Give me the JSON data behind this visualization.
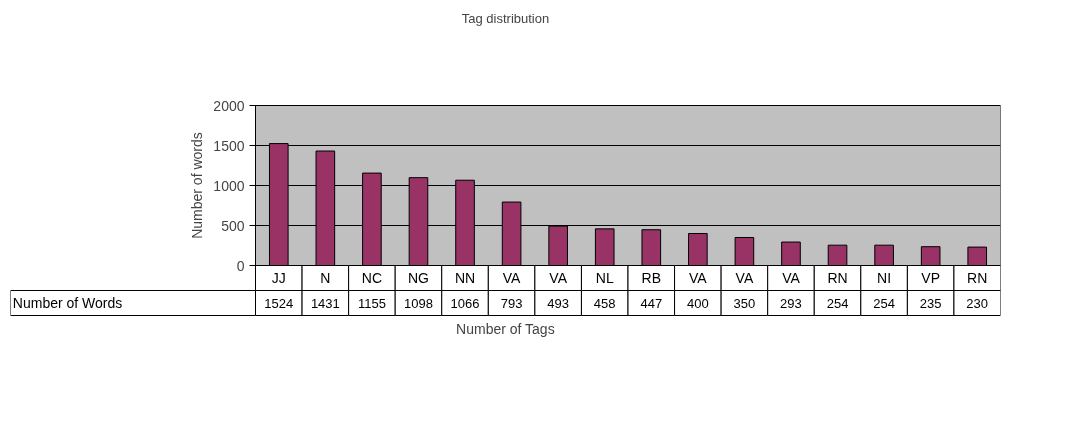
{
  "chart_data": {
    "type": "bar",
    "title": "Tag distribution",
    "xlabel": "Number of Tags",
    "ylabel": "Number of words",
    "categories": [
      "JJ",
      "N",
      "NC",
      "NG",
      "NN",
      "VA",
      "VA",
      "NL",
      "RB",
      "VA",
      "VA",
      "VA",
      "RN",
      "NI",
      "VP",
      "RN"
    ],
    "series": [
      {
        "name": "Number of Words",
        "color": "#993366",
        "values": [
          1524,
          1431,
          1155,
          1098,
          1066,
          793,
          493,
          458,
          447,
          400,
          350,
          293,
          254,
          254,
          235,
          230
        ]
      }
    ],
    "ylim": [
      0,
      2000
    ],
    "yticks": [
      0,
      500,
      1000,
      1500,
      2000
    ],
    "grid": "y",
    "data_labels": true
  }
}
